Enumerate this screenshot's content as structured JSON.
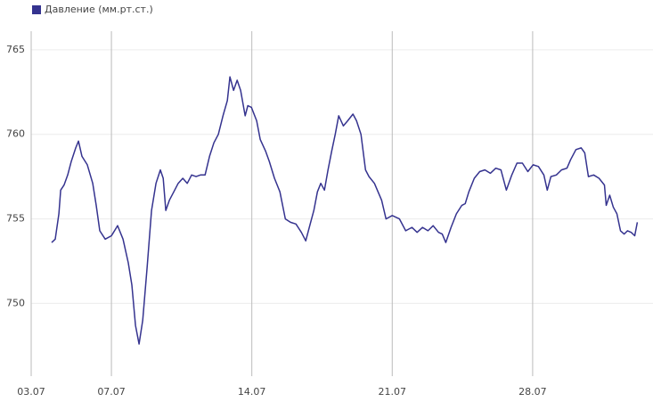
{
  "chart_data": {
    "type": "line",
    "x": [
      4.02,
      4.2,
      4.38,
      4.47,
      4.64,
      4.82,
      5.0,
      5.22,
      5.36,
      5.53,
      5.8,
      6.07,
      6.24,
      6.42,
      6.69,
      7.0,
      7.31,
      7.58,
      7.84,
      8.02,
      8.2,
      8.38,
      8.56,
      8.78,
      9.0,
      9.22,
      9.44,
      9.58,
      9.71,
      9.89,
      10.11,
      10.33,
      10.56,
      10.78,
      11.0,
      11.22,
      11.44,
      11.67,
      11.89,
      12.11,
      12.33,
      12.56,
      12.78,
      12.91,
      13.09,
      13.27,
      13.44,
      13.67,
      13.8,
      13.98,
      14.24,
      14.42,
      14.69,
      14.87,
      15.13,
      15.4,
      15.67,
      15.93,
      16.2,
      16.47,
      16.69,
      16.91,
      17.09,
      17.27,
      17.44,
      17.62,
      17.8,
      17.98,
      18.16,
      18.33,
      18.56,
      18.78,
      19.04,
      19.22,
      19.44,
      19.67,
      19.84,
      20.11,
      20.47,
      20.69,
      21.0,
      21.36,
      21.67,
      21.98,
      22.24,
      22.51,
      22.78,
      23.04,
      23.31,
      23.49,
      23.67,
      23.93,
      24.2,
      24.47,
      24.64,
      24.82,
      25.09,
      25.36,
      25.62,
      25.89,
      26.16,
      26.42,
      26.69,
      26.96,
      27.22,
      27.49,
      27.76,
      28.02,
      28.29,
      28.56,
      28.73,
      28.91,
      29.18,
      29.44,
      29.71,
      29.89,
      30.16,
      30.42,
      30.6,
      30.78,
      31.04,
      31.31,
      31.58,
      31.67,
      31.84,
      32.02,
      32.2,
      32.38,
      32.56,
      32.73,
      32.91,
      33.09,
      33.22
    ],
    "series": [
      {
        "name": "Давление (мм.рт.ст.)",
        "color": "#35338f",
        "values": [
          753.6,
          753.8,
          755.3,
          756.7,
          757.0,
          757.6,
          758.4,
          759.2,
          759.6,
          758.7,
          758.2,
          757.1,
          755.8,
          754.3,
          753.8,
          754.0,
          754.6,
          753.8,
          752.4,
          751.1,
          748.7,
          747.6,
          749.0,
          752.1,
          755.5,
          757.1,
          757.9,
          757.4,
          755.5,
          756.1,
          756.6,
          757.1,
          757.4,
          757.1,
          757.6,
          757.5,
          757.6,
          757.6,
          758.7,
          759.5,
          760.0,
          761.1,
          762.0,
          763.4,
          762.6,
          763.2,
          762.6,
          761.1,
          761.7,
          761.6,
          760.8,
          759.7,
          759.0,
          758.4,
          757.4,
          756.6,
          755.0,
          754.8,
          754.7,
          754.2,
          753.7,
          754.7,
          755.5,
          756.6,
          757.1,
          756.7,
          757.9,
          759.0,
          760.0,
          761.1,
          760.5,
          760.8,
          761.2,
          760.8,
          760.0,
          757.9,
          757.5,
          757.1,
          756.1,
          755.0,
          755.2,
          755.0,
          754.3,
          754.5,
          754.2,
          754.5,
          754.3,
          754.6,
          754.2,
          754.1,
          753.6,
          754.5,
          755.3,
          755.8,
          755.9,
          756.6,
          757.4,
          757.8,
          757.9,
          757.7,
          758.0,
          757.9,
          756.7,
          757.6,
          758.3,
          758.3,
          757.8,
          758.2,
          758.1,
          757.6,
          756.7,
          757.5,
          757.6,
          757.9,
          758.0,
          758.5,
          759.1,
          759.2,
          758.9,
          757.5,
          757.6,
          757.4,
          757.0,
          755.8,
          756.4,
          755.7,
          755.3,
          754.3,
          754.1,
          754.3,
          754.2,
          754.0,
          754.8
        ]
      }
    ],
    "xlim": [
      3,
      34
    ],
    "xticks": [
      {
        "value": 3,
        "label": "03.07"
      },
      {
        "value": 7,
        "label": "07.07"
      },
      {
        "value": 14,
        "label": "14.07"
      },
      {
        "value": 21,
        "label": "21.07"
      },
      {
        "value": 28,
        "label": "28.07"
      }
    ],
    "ylim": [
      745.7,
      766.1
    ],
    "yticks": [
      750,
      755,
      760,
      765
    ],
    "grid": true,
    "legend": "top-left"
  }
}
